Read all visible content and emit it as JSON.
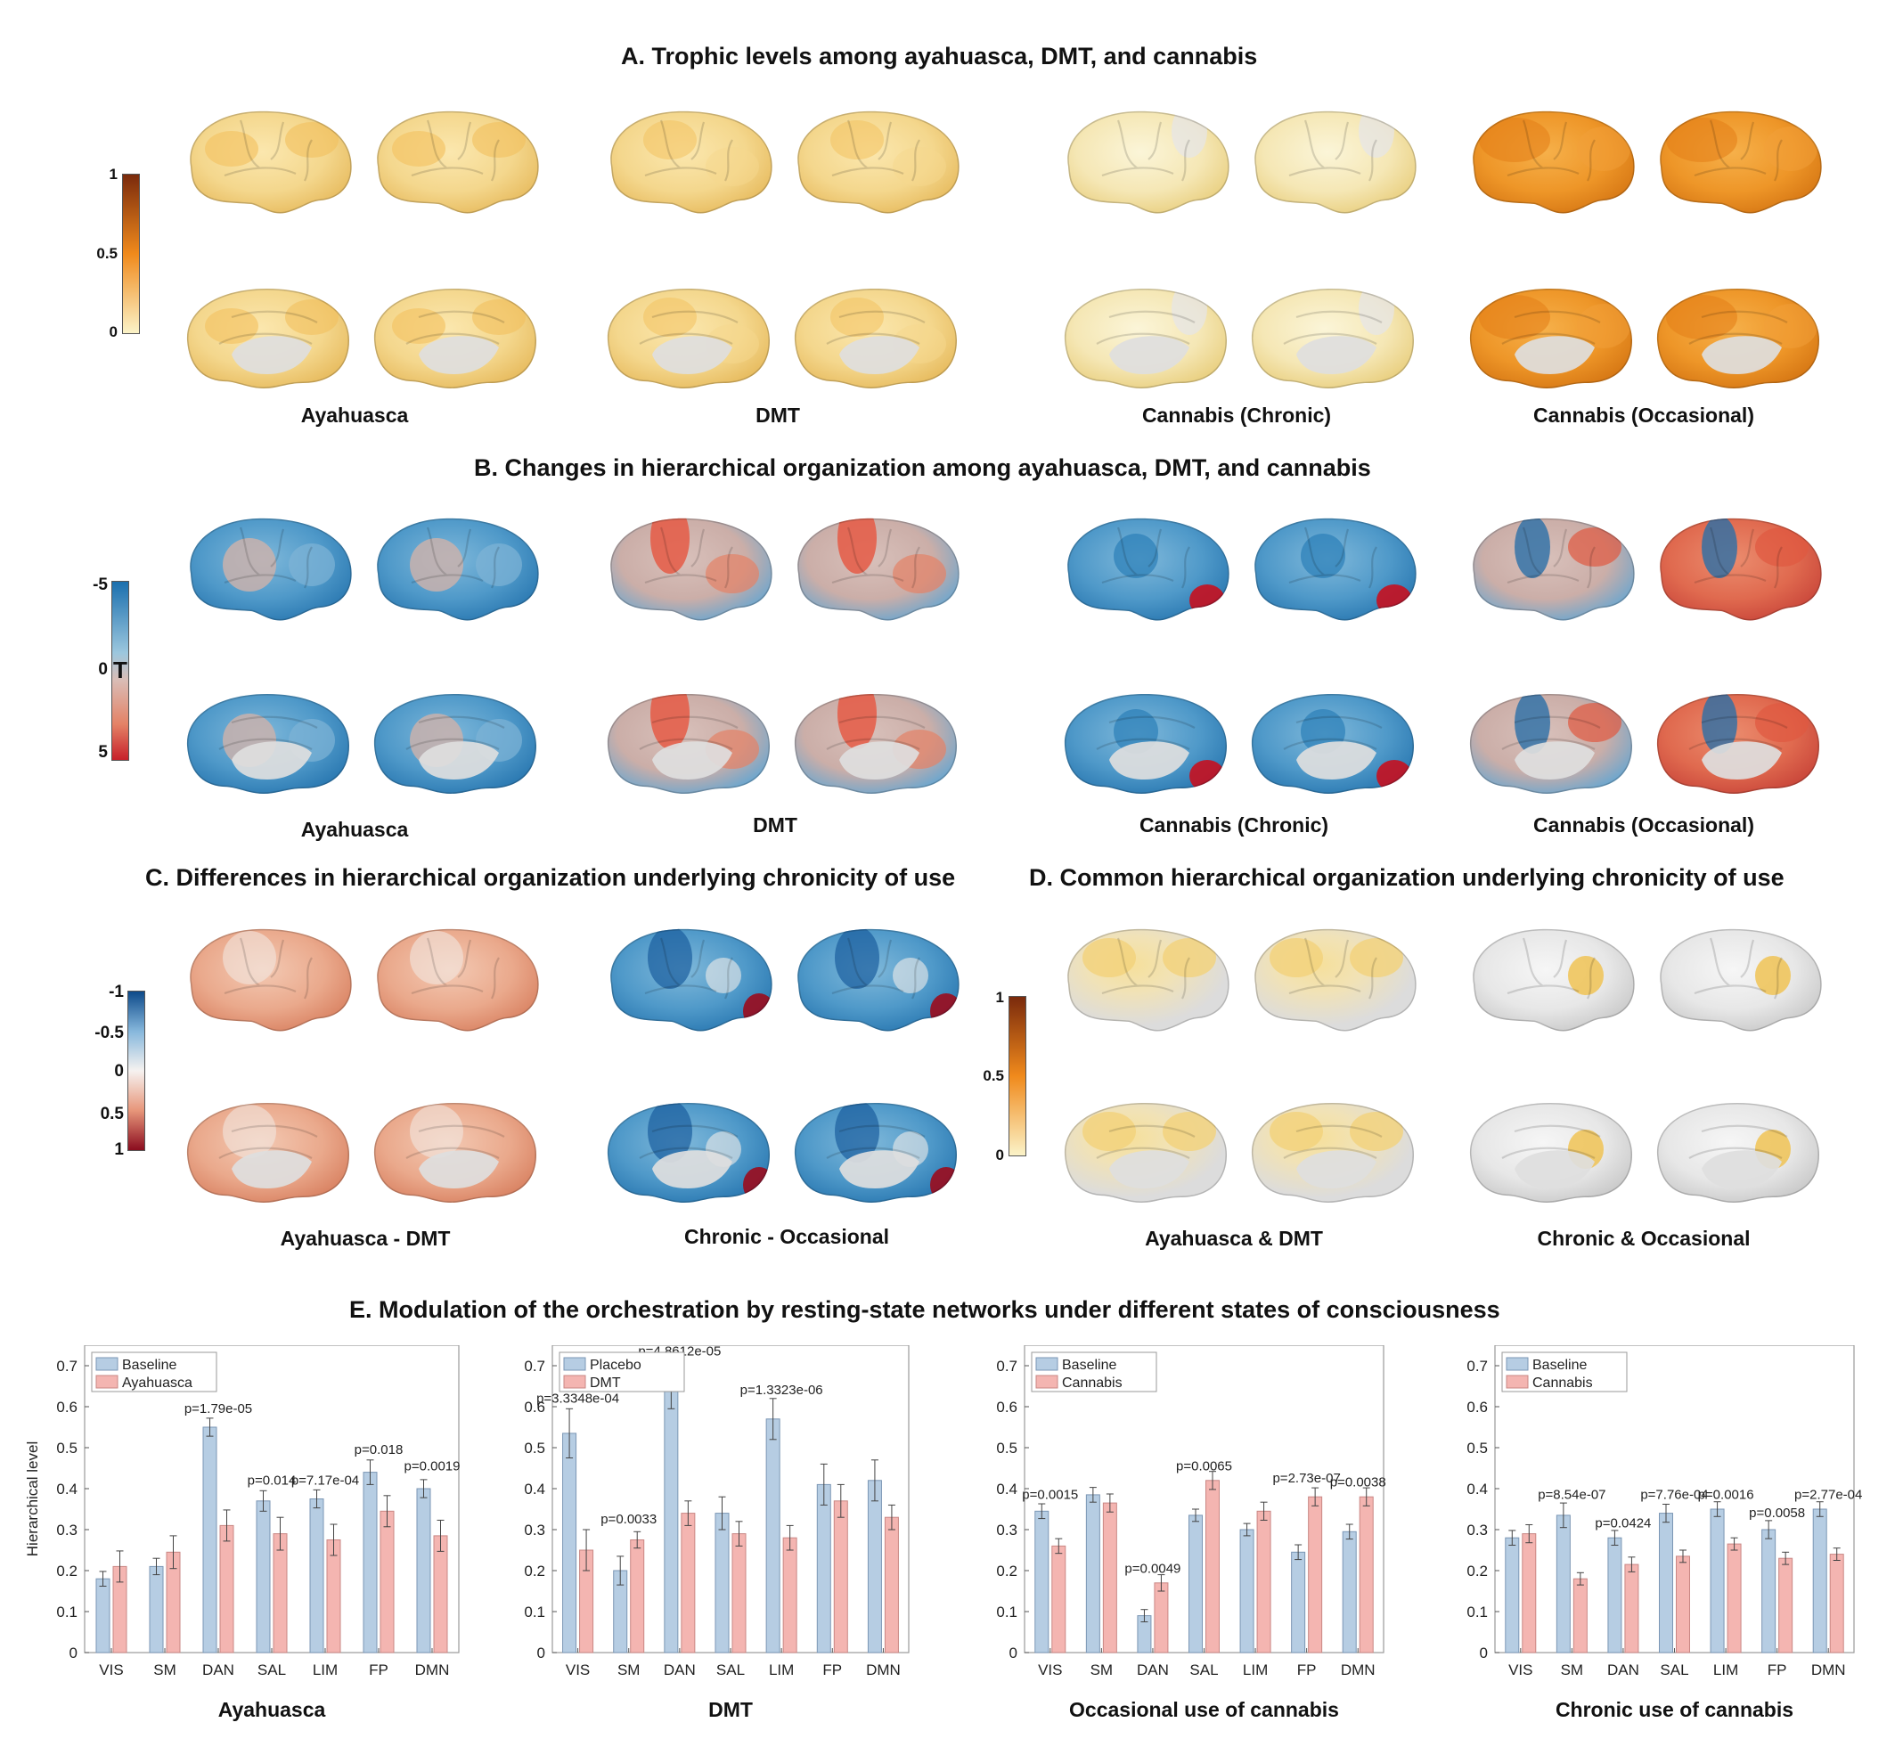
{
  "sections": {
    "A": {
      "title": "A. Trophic levels among ayahuasca, DMT, and cannabis",
      "labels": [
        "Ayahuasca",
        "DMT",
        "Cannabis (Chronic)",
        "Cannabis (Occasional)"
      ],
      "colorbar": {
        "ticks": [
          "1",
          "0.5",
          "0"
        ],
        "colors": [
          "#7a2a0c",
          "#f08a1c",
          "#fbf3c8"
        ]
      }
    },
    "B": {
      "title": "B. Changes in hierarchical organization among ayahuasca, DMT, and cannabis",
      "labels": [
        "Ayahuasca",
        "DMT",
        "Cannabis (Chronic)",
        "Cannabis (Occasional)"
      ],
      "colorbar": {
        "ticks": [
          "-5",
          "0",
          "5"
        ],
        "symbol": "T",
        "colors": [
          "#1a6fae",
          "#9cc7de",
          "#d9bdb6",
          "#e48266",
          "#c7202a"
        ]
      }
    },
    "C": {
      "title": "C. Differences in hierarchical organization underlying chronicity of use",
      "labels": [
        "Ayahuasca - DMT",
        "Chronic - Occasional"
      ],
      "colorbar": {
        "ticks": [
          "-1",
          "-0.5",
          "0",
          "0.5",
          "1"
        ],
        "colors": [
          "#0d4a8a",
          "#86b7dc",
          "#f6f2f0",
          "#e7967a",
          "#8b0c1e"
        ]
      }
    },
    "D": {
      "title": "D. Common hierarchical organization underlying chronicity of use",
      "labels": [
        "Ayahuasca & DMT",
        "Chronic & Occasional"
      ],
      "colorbar": {
        "ticks": [
          "1",
          "0.5",
          "0"
        ],
        "colors": [
          "#7a2a0c",
          "#f08a1c",
          "#fbf3c8"
        ]
      }
    },
    "E": {
      "title": "E. Modulation of the orchestration by resting-state networks under different states of consciousness",
      "ylabel": "Hierarchical level"
    }
  },
  "colors": {
    "baseline_fill": "#b6cde3",
    "baseline_stroke": "#7b96b4",
    "condition_fill": "#f4b5b1",
    "condition_stroke": "#c98784",
    "axis": "#333333"
  },
  "chart_data": [
    {
      "type": "bar",
      "title": "Ayahuasca",
      "categories": [
        "VIS",
        "SM",
        "DAN",
        "SAL",
        "LIM",
        "FP",
        "DMN"
      ],
      "ylim": [
        0,
        0.75
      ],
      "yticks": [
        "0",
        "0.1",
        "0.2",
        "0.3",
        "0.4",
        "0.5",
        "0.6",
        "0.7"
      ],
      "ylabel": "Hierarchical level",
      "legend_position": "top-left",
      "series": [
        {
          "name": "Baseline",
          "values": [
            0.18,
            0.21,
            0.55,
            0.37,
            0.375,
            0.44,
            0.4
          ],
          "errors": [
            0.018,
            0.02,
            0.022,
            0.025,
            0.022,
            0.03,
            0.022
          ]
        },
        {
          "name": "Ayahuasca",
          "values": [
            0.21,
            0.245,
            0.31,
            0.29,
            0.275,
            0.345,
            0.285
          ],
          "errors": [
            0.038,
            0.04,
            0.038,
            0.04,
            0.038,
            0.038,
            0.038
          ]
        }
      ],
      "annotations": [
        "",
        "",
        "p=1.79e-05",
        "p=0.014",
        "p=7.17e-04",
        "p=0.018",
        "p=0.0019"
      ],
      "annotation_y": [
        0,
        0,
        0.585,
        0.41,
        0.41,
        0.485,
        0.445
      ]
    },
    {
      "type": "bar",
      "title": "DMT",
      "categories": [
        "VIS",
        "SM",
        "DAN",
        "SAL",
        "LIM",
        "FP",
        "DMN"
      ],
      "ylim": [
        0,
        0.75
      ],
      "yticks": [
        "0",
        "0.1",
        "0.2",
        "0.3",
        "0.4",
        "0.5",
        "0.6",
        "0.7"
      ],
      "ylabel": "",
      "legend_position": "top-left",
      "series": [
        {
          "name": "Placebo",
          "values": [
            0.535,
            0.2,
            0.655,
            0.34,
            0.57,
            0.41,
            0.42
          ],
          "errors": [
            0.06,
            0.035,
            0.06,
            0.04,
            0.05,
            0.05,
            0.05
          ]
        },
        {
          "name": "DMT",
          "values": [
            0.25,
            0.275,
            0.34,
            0.29,
            0.28,
            0.37,
            0.33
          ],
          "errors": [
            0.05,
            0.02,
            0.03,
            0.03,
            0.03,
            0.04,
            0.03
          ]
        }
      ],
      "annotations": [
        "p=3.3348e-04",
        "p=0.0033",
        "p=4.8612e-05",
        "",
        "p=1.3323e-06",
        "",
        ""
      ],
      "annotation_y": [
        0.61,
        0.315,
        0.725,
        0,
        0.63,
        0,
        0
      ]
    },
    {
      "type": "bar",
      "title": "Occasional use of cannabis",
      "categories": [
        "VIS",
        "SM",
        "DAN",
        "SAL",
        "LIM",
        "FP",
        "DMN"
      ],
      "ylim": [
        0,
        0.75
      ],
      "yticks": [
        "0",
        "0.1",
        "0.2",
        "0.3",
        "0.4",
        "0.5",
        "0.6",
        "0.7"
      ],
      "ylabel": "",
      "legend_position": "top-left",
      "series": [
        {
          "name": "Baseline",
          "values": [
            0.345,
            0.385,
            0.09,
            0.335,
            0.3,
            0.245,
            0.295
          ],
          "errors": [
            0.018,
            0.018,
            0.015,
            0.015,
            0.015,
            0.018,
            0.018
          ]
        },
        {
          "name": "Cannabis",
          "values": [
            0.26,
            0.365,
            0.17,
            0.42,
            0.345,
            0.38,
            0.38
          ],
          "errors": [
            0.018,
            0.022,
            0.02,
            0.022,
            0.022,
            0.022,
            0.022
          ]
        }
      ],
      "annotations": [
        "p=0.0015",
        "",
        "p=0.0049",
        "p=0.0065",
        "",
        "p=2.73e-07",
        "p=0.0038"
      ],
      "annotation_y": [
        0.375,
        0,
        0.195,
        0.445,
        0,
        0.415,
        0.405
      ]
    },
    {
      "type": "bar",
      "title": "Chronic use of cannabis",
      "categories": [
        "VIS",
        "SM",
        "DAN",
        "SAL",
        "LIM",
        "FP",
        "DMN"
      ],
      "ylim": [
        0,
        0.75
      ],
      "yticks": [
        "0",
        "0.1",
        "0.2",
        "0.3",
        "0.4",
        "0.5",
        "0.6",
        "0.7"
      ],
      "ylabel": "",
      "legend_position": "top-left",
      "series": [
        {
          "name": "Baseline",
          "values": [
            0.28,
            0.335,
            0.28,
            0.34,
            0.35,
            0.3,
            0.35
          ],
          "errors": [
            0.018,
            0.03,
            0.018,
            0.022,
            0.018,
            0.022,
            0.018
          ]
        },
        {
          "name": "Cannabis",
          "values": [
            0.29,
            0.18,
            0.215,
            0.235,
            0.265,
            0.23,
            0.24
          ],
          "errors": [
            0.022,
            0.015,
            0.018,
            0.015,
            0.015,
            0.015,
            0.015
          ]
        }
      ],
      "annotations": [
        "",
        "p=8.54e-07",
        "p=0.0424",
        "p=7.76e-04",
        "p=0.0016",
        "p=0.0058",
        "p=2.77e-04"
      ],
      "annotation_y": [
        0,
        0.375,
        0.305,
        0.375,
        0.375,
        0.33,
        0.375
      ]
    }
  ]
}
